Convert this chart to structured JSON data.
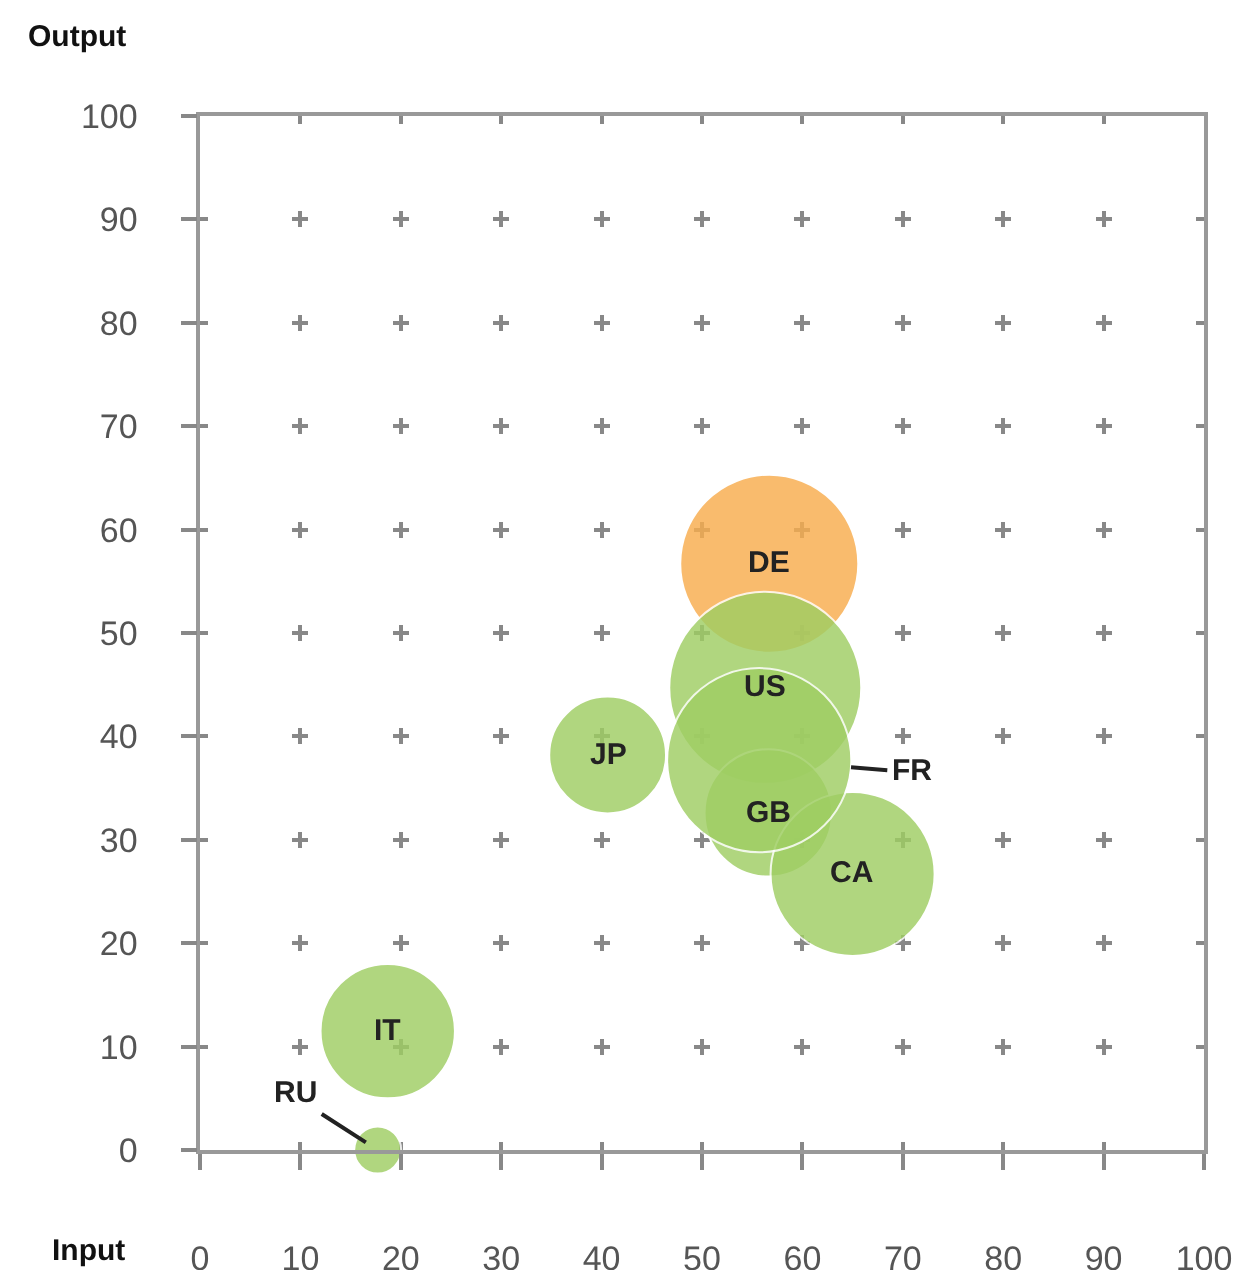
{
  "chart_data": {
    "type": "bubble",
    "xlabel": "Input",
    "ylabel": "Output",
    "x": [
      56.7,
      56.3,
      56.6,
      65,
      40.6,
      18.7,
      55.7,
      17.7
    ],
    "values": [
      56.7,
      44.7,
      32.6,
      26.7,
      38.2,
      11.5,
      37.7,
      0
    ],
    "sizes": [
      0.86,
      1,
      0.44,
      0.73,
      0.37,
      0.49,
      0.92,
      0.06
    ],
    "colors": [
      "#f8ad4e",
      "#9fce63",
      "#9fce63",
      "#9fce63",
      "#9fce63",
      "#9fce63",
      "#9fce63",
      "#9fce63"
    ],
    "xlim": [
      0,
      100
    ],
    "ylim": [
      0,
      100
    ],
    "xticks": [
      0,
      10,
      20,
      30,
      40,
      50,
      60,
      70,
      80,
      90,
      100
    ],
    "yticks": [
      0,
      10,
      20,
      30,
      40,
      50,
      60,
      70,
      80,
      90,
      100
    ],
    "grid": true,
    "annotations": [
      {
        "text": "DE",
        "x": 56.7,
        "y": 56.7
      },
      {
        "text": "US",
        "x": 56.3,
        "y": 44.7
      },
      {
        "text": "GB",
        "x": 56.6,
        "y": 32.6
      },
      {
        "text": "CA",
        "x": 65,
        "y": 26.7
      },
      {
        "text": "JP",
        "x": 40.6,
        "y": 38.2
      },
      {
        "text": "IT",
        "x": 18.7,
        "y": 11.5
      },
      {
        "text": "FR",
        "x": 55.7,
        "y": 37.7
      },
      {
        "text": "RU",
        "x": 17.7,
        "y": 0
      }
    ]
  }
}
